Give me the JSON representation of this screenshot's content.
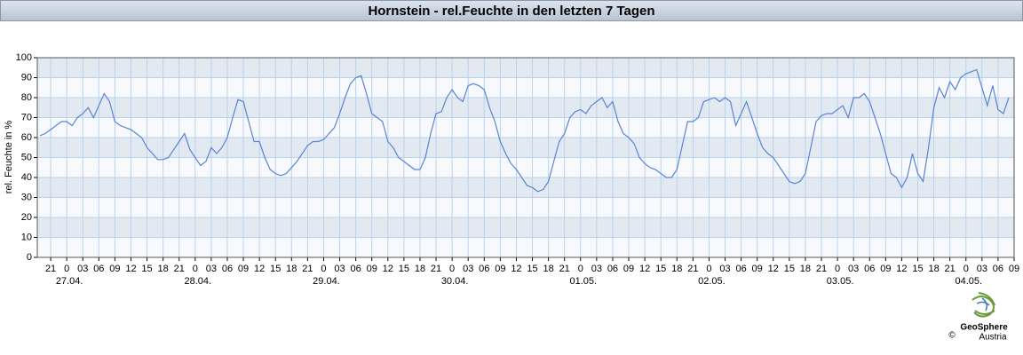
{
  "chart_data": {
    "type": "line",
    "title": "Hornstein - rel.Feuchte in den letzten 7 Tagen",
    "y_label": "rel. Feuchte in %",
    "color": "#5a84d4",
    "xlim": [
      -5.5,
      177
    ],
    "ylim": [
      0,
      100
    ],
    "yticks": [
      0,
      10,
      20,
      30,
      40,
      50,
      60,
      70,
      80,
      90,
      100
    ],
    "grid": true,
    "xticks": [
      {
        "value": -3,
        "label": "21"
      },
      {
        "value": 0,
        "label": "0"
      },
      {
        "value": 3,
        "label": "03"
      },
      {
        "value": 6,
        "label": "06"
      },
      {
        "value": 9,
        "label": "09"
      },
      {
        "value": 12,
        "label": "12"
      },
      {
        "value": 15,
        "label": "15"
      },
      {
        "value": 18,
        "label": "18"
      },
      {
        "value": 21,
        "label": "21"
      },
      {
        "value": 24,
        "label": "0"
      },
      {
        "value": 27,
        "label": "03"
      },
      {
        "value": 30,
        "label": "06"
      },
      {
        "value": 33,
        "label": "09"
      },
      {
        "value": 36,
        "label": "12"
      },
      {
        "value": 39,
        "label": "15"
      },
      {
        "value": 42,
        "label": "18"
      },
      {
        "value": 45,
        "label": "21"
      },
      {
        "value": 48,
        "label": "0"
      },
      {
        "value": 51,
        "label": "03"
      },
      {
        "value": 54,
        "label": "06"
      },
      {
        "value": 57,
        "label": "09"
      },
      {
        "value": 60,
        "label": "12"
      },
      {
        "value": 63,
        "label": "15"
      },
      {
        "value": 66,
        "label": "18"
      },
      {
        "value": 69,
        "label": "21"
      },
      {
        "value": 72,
        "label": "0"
      },
      {
        "value": 75,
        "label": "03"
      },
      {
        "value": 78,
        "label": "06"
      },
      {
        "value": 81,
        "label": "09"
      },
      {
        "value": 84,
        "label": "12"
      },
      {
        "value": 87,
        "label": "15"
      },
      {
        "value": 90,
        "label": "18"
      },
      {
        "value": 93,
        "label": "21"
      },
      {
        "value": 96,
        "label": "0"
      },
      {
        "value": 99,
        "label": "03"
      },
      {
        "value": 102,
        "label": "06"
      },
      {
        "value": 105,
        "label": "09"
      },
      {
        "value": 108,
        "label": "12"
      },
      {
        "value": 111,
        "label": "15"
      },
      {
        "value": 114,
        "label": "18"
      },
      {
        "value": 117,
        "label": "21"
      },
      {
        "value": 120,
        "label": "0"
      },
      {
        "value": 123,
        "label": "03"
      },
      {
        "value": 126,
        "label": "06"
      },
      {
        "value": 129,
        "label": "09"
      },
      {
        "value": 132,
        "label": "12"
      },
      {
        "value": 135,
        "label": "15"
      },
      {
        "value": 138,
        "label": "18"
      },
      {
        "value": 141,
        "label": "21"
      },
      {
        "value": 144,
        "label": "0"
      },
      {
        "value": 147,
        "label": "03"
      },
      {
        "value": 150,
        "label": "06"
      },
      {
        "value": 153,
        "label": "09"
      },
      {
        "value": 156,
        "label": "12"
      },
      {
        "value": 159,
        "label": "15"
      },
      {
        "value": 162,
        "label": "18"
      },
      {
        "value": 165,
        "label": "21"
      },
      {
        "value": 168,
        "label": "0"
      },
      {
        "value": 171,
        "label": "03"
      },
      {
        "value": 174,
        "label": "06"
      },
      {
        "value": 177,
        "label": "09"
      }
    ],
    "date_labels": [
      {
        "value": 0,
        "label": "27.04."
      },
      {
        "value": 24,
        "label": "28.04."
      },
      {
        "value": 48,
        "label": "29.04."
      },
      {
        "value": 72,
        "label": "30.04."
      },
      {
        "value": 96,
        "label": "01.05."
      },
      {
        "value": 120,
        "label": "02.05."
      },
      {
        "value": 144,
        "label": "03.05."
      },
      {
        "value": 168,
        "label": "04.05."
      }
    ],
    "x": [
      -5,
      -4,
      -3,
      -2,
      -1,
      0,
      1,
      2,
      3,
      4,
      5,
      6,
      7,
      8,
      9,
      10,
      11,
      12,
      13,
      14,
      15,
      16,
      17,
      18,
      19,
      20,
      21,
      22,
      23,
      24,
      25,
      26,
      27,
      28,
      29,
      30,
      31,
      32,
      33,
      34,
      35,
      36,
      37,
      38,
      39,
      40,
      41,
      42,
      43,
      44,
      45,
      46,
      47,
      48,
      49,
      50,
      51,
      52,
      53,
      54,
      55,
      56,
      57,
      58,
      59,
      60,
      61,
      62,
      63,
      64,
      65,
      66,
      67,
      68,
      69,
      70,
      71,
      72,
      73,
      74,
      75,
      76,
      77,
      78,
      79,
      80,
      81,
      82,
      83,
      84,
      85,
      86,
      87,
      88,
      89,
      90,
      91,
      92,
      93,
      94,
      95,
      96,
      97,
      98,
      99,
      100,
      101,
      102,
      103,
      104,
      105,
      106,
      107,
      108,
      109,
      110,
      111,
      112,
      113,
      114,
      115,
      116,
      117,
      118,
      119,
      120,
      121,
      122,
      123,
      124,
      125,
      126,
      127,
      128,
      129,
      130,
      131,
      132,
      133,
      134,
      135,
      136,
      137,
      138,
      139,
      140,
      141,
      142,
      143,
      144,
      145,
      146,
      147,
      148,
      149,
      150,
      151,
      152,
      153,
      154,
      155,
      156,
      157,
      158,
      159,
      160,
      161,
      162,
      163,
      164,
      165,
      166,
      167,
      168,
      169,
      170,
      171,
      172,
      173,
      174,
      175,
      176
    ],
    "values": [
      61,
      62,
      64,
      66,
      68,
      68,
      66,
      70,
      72,
      75,
      70,
      76,
      82,
      78,
      68,
      66,
      65,
      64,
      62,
      60,
      55,
      52,
      49,
      49,
      50,
      54,
      58,
      62,
      54,
      50,
      46,
      48,
      55,
      52,
      55,
      60,
      70,
      79,
      78,
      68,
      58,
      58,
      50,
      44,
      42,
      41,
      42,
      45,
      48,
      52,
      56,
      58,
      58,
      59,
      62,
      65,
      72,
      80,
      87,
      90,
      91,
      82,
      72,
      70,
      68,
      58,
      55,
      50,
      48,
      46,
      44,
      44,
      50,
      62,
      72,
      73,
      80,
      84,
      80,
      78,
      86,
      87,
      86,
      84,
      75,
      68,
      58,
      52,
      47,
      44,
      40,
      36,
      35,
      33,
      34,
      38,
      48,
      58,
      62,
      70,
      73,
      74,
      72,
      76,
      78,
      80,
      75,
      78,
      68,
      62,
      60,
      57,
      50,
      47,
      45,
      44,
      42,
      40,
      40,
      44,
      56,
      68,
      68,
      70,
      78,
      79,
      80,
      78,
      80,
      78,
      66,
      72,
      78,
      70,
      62,
      55,
      52,
      50,
      46,
      42,
      38,
      37,
      38,
      42,
      55,
      68,
      71,
      72,
      72,
      74,
      76,
      70,
      80,
      80,
      82,
      78,
      70,
      62,
      52,
      42,
      40,
      35,
      40,
      52,
      42,
      38,
      55,
      75,
      85,
      80,
      88,
      84,
      90,
      92,
      93,
      94,
      85,
      76,
      86,
      74,
      72,
      80
    ]
  },
  "logo": {
    "name": "GeoSphere",
    "sub": "Austria",
    "copyright": "©"
  }
}
